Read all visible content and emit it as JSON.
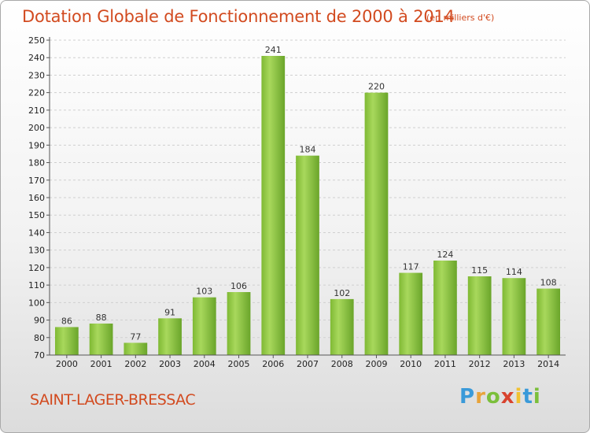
{
  "title": "Dotation Globale de Fonctionnement de 2000 à 2014",
  "unit_note": "(en milliers d'€)",
  "commune": "SAINT-LAGER-BRESSAC",
  "logo": {
    "letters": [
      "P",
      "r",
      "o",
      "x",
      "i",
      "t",
      "i"
    ],
    "colors": [
      "#3a9ad9",
      "#e8a33a",
      "#7bbf3b",
      "#d8432e",
      "#f1c232",
      "#3a9ad9",
      "#7bbf3b"
    ]
  },
  "colors": {
    "bar_light": "#a6d658",
    "bar_dark": "#6aa52a",
    "title": "#d24a1f"
  },
  "chart_data": {
    "type": "bar",
    "categories": [
      "2000",
      "2001",
      "2002",
      "2003",
      "2004",
      "2005",
      "2006",
      "2007",
      "2008",
      "2009",
      "2010",
      "2011",
      "2012",
      "2013",
      "2014"
    ],
    "values": [
      86,
      88,
      77,
      91,
      103,
      106,
      241,
      184,
      102,
      220,
      117,
      124,
      115,
      114,
      108
    ],
    "ylim": [
      70,
      250
    ],
    "ytick_step": 10,
    "grid": true,
    "xlabel": "",
    "ylabel": ""
  }
}
